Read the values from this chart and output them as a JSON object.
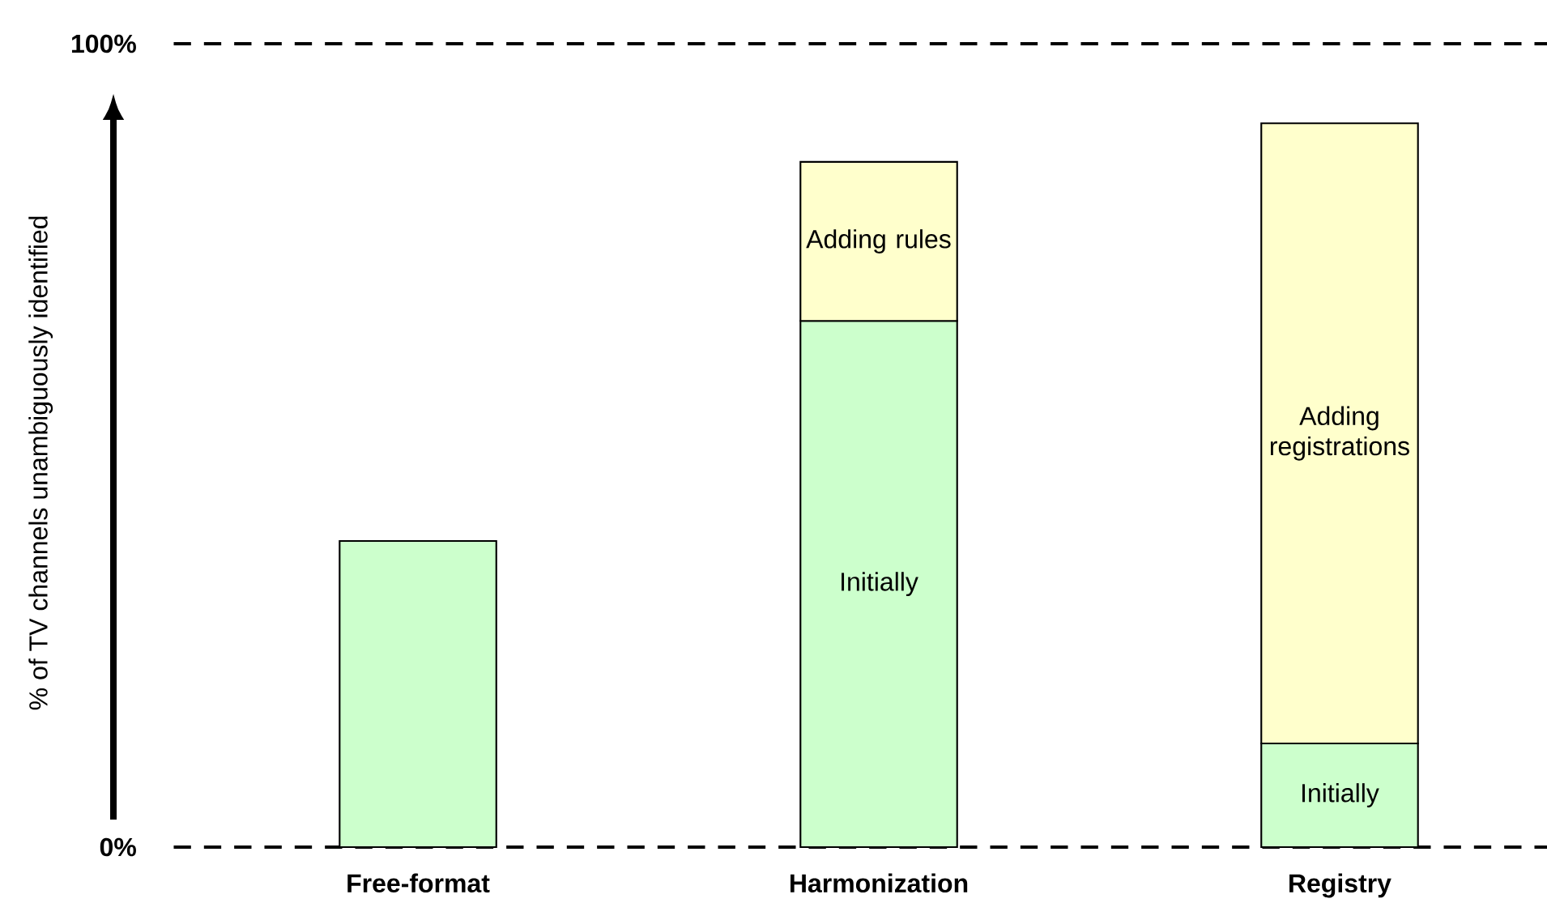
{
  "chart_data": {
    "type": "bar",
    "stacked": true,
    "ylabel": "% of TV channels unambiguously identified",
    "categories": [
      "Free-format",
      "Harmonization",
      "Registry"
    ],
    "series": [
      {
        "name": "Initially",
        "color": "#ccffcc",
        "values": [
          38.1,
          65.5,
          12.9
        ]
      },
      {
        "name": "Adding rules",
        "color": "#ffffcc",
        "values": [
          null,
          19.8,
          null
        ]
      },
      {
        "name": "Adding registrations",
        "color": "#ffffcc",
        "values": [
          null,
          null,
          77.2
        ]
      }
    ],
    "ylim": [
      0,
      100
    ],
    "yticks": [
      {
        "value": 0,
        "label": "0%"
      },
      {
        "value": 100,
        "label": "100%"
      }
    ],
    "ref_lines": [
      {
        "axis": "y",
        "value": 0,
        "line_style": "dashed"
      },
      {
        "axis": "y",
        "value": 100,
        "line_style": "dashed"
      }
    ],
    "grid": false
  }
}
